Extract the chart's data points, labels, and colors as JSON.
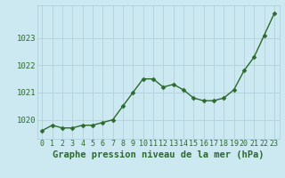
{
  "x": [
    0,
    1,
    2,
    3,
    4,
    5,
    6,
    7,
    8,
    9,
    10,
    11,
    12,
    13,
    14,
    15,
    16,
    17,
    18,
    19,
    20,
    21,
    22,
    23
  ],
  "y": [
    1019.6,
    1019.8,
    1019.7,
    1019.7,
    1019.8,
    1019.8,
    1019.9,
    1020.0,
    1020.5,
    1021.0,
    1021.5,
    1021.5,
    1021.2,
    1021.3,
    1021.1,
    1020.8,
    1020.7,
    1020.7,
    1020.8,
    1021.1,
    1021.8,
    1022.3,
    1023.1,
    1023.9
  ],
  "line_color": "#2d6a2d",
  "marker_color": "#2d6a2d",
  "bg_color": "#cce8f0",
  "grid_color": "#aaccd8",
  "xlabel_ticks": [
    "0",
    "1",
    "2",
    "3",
    "4",
    "5",
    "6",
    "7",
    "8",
    "9",
    "10",
    "11",
    "12",
    "13",
    "14",
    "15",
    "16",
    "17",
    "18",
    "19",
    "20",
    "21",
    "22",
    "23"
  ],
  "yticks": [
    1020,
    1021,
    1022,
    1023
  ],
  "ylim": [
    1019.3,
    1024.2
  ],
  "xlim": [
    -0.5,
    23.5
  ],
  "title": "Graphe pression niveau de la mer (hPa)",
  "title_color": "#2d6a2d",
  "title_fontsize": 7.5,
  "tick_fontsize": 6.0,
  "ytick_fontsize": 6.5,
  "marker_size": 2.5,
  "line_width": 1.0
}
